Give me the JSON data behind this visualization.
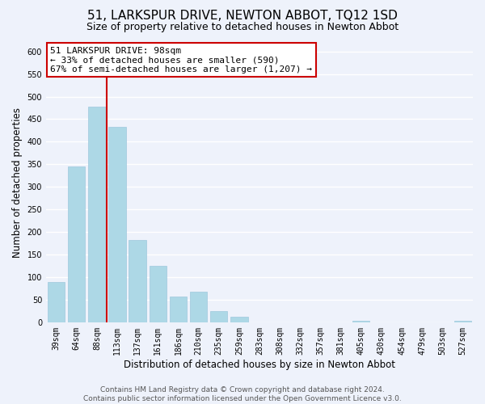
{
  "title": "51, LARKSPUR DRIVE, NEWTON ABBOT, TQ12 1SD",
  "subtitle": "Size of property relative to detached houses in Newton Abbot",
  "xlabel": "Distribution of detached houses by size in Newton Abbot",
  "ylabel": "Number of detached properties",
  "bar_labels": [
    "39sqm",
    "64sqm",
    "88sqm",
    "113sqm",
    "137sqm",
    "161sqm",
    "186sqm",
    "210sqm",
    "235sqm",
    "259sqm",
    "283sqm",
    "308sqm",
    "332sqm",
    "357sqm",
    "381sqm",
    "405sqm",
    "430sqm",
    "454sqm",
    "479sqm",
    "503sqm",
    "527sqm"
  ],
  "bar_values": [
    90,
    345,
    478,
    433,
    182,
    125,
    57,
    68,
    24,
    12,
    0,
    0,
    0,
    0,
    0,
    3,
    0,
    0,
    0,
    0,
    3
  ],
  "bar_color": "#add8e6",
  "annotation_text": "51 LARKSPUR DRIVE: 98sqm\n← 33% of detached houses are smaller (590)\n67% of semi-detached houses are larger (1,207) →",
  "annotation_box_color": "#ffffff",
  "annotation_box_edge": "#cc0000",
  "vline_color": "#cc0000",
  "vline_x": 2.5,
  "ylim": [
    0,
    620
  ],
  "yticks": [
    0,
    50,
    100,
    150,
    200,
    250,
    300,
    350,
    400,
    450,
    500,
    550,
    600
  ],
  "footer_line1": "Contains HM Land Registry data © Crown copyright and database right 2024.",
  "footer_line2": "Contains public sector information licensed under the Open Government Licence v3.0.",
  "bg_color": "#eef2fb",
  "plot_bg_color": "#eef2fb",
  "grid_color": "#ffffff",
  "title_fontsize": 11,
  "subtitle_fontsize": 9,
  "axis_label_fontsize": 8.5,
  "tick_fontsize": 7,
  "annotation_fontsize": 8,
  "footer_fontsize": 6.5
}
